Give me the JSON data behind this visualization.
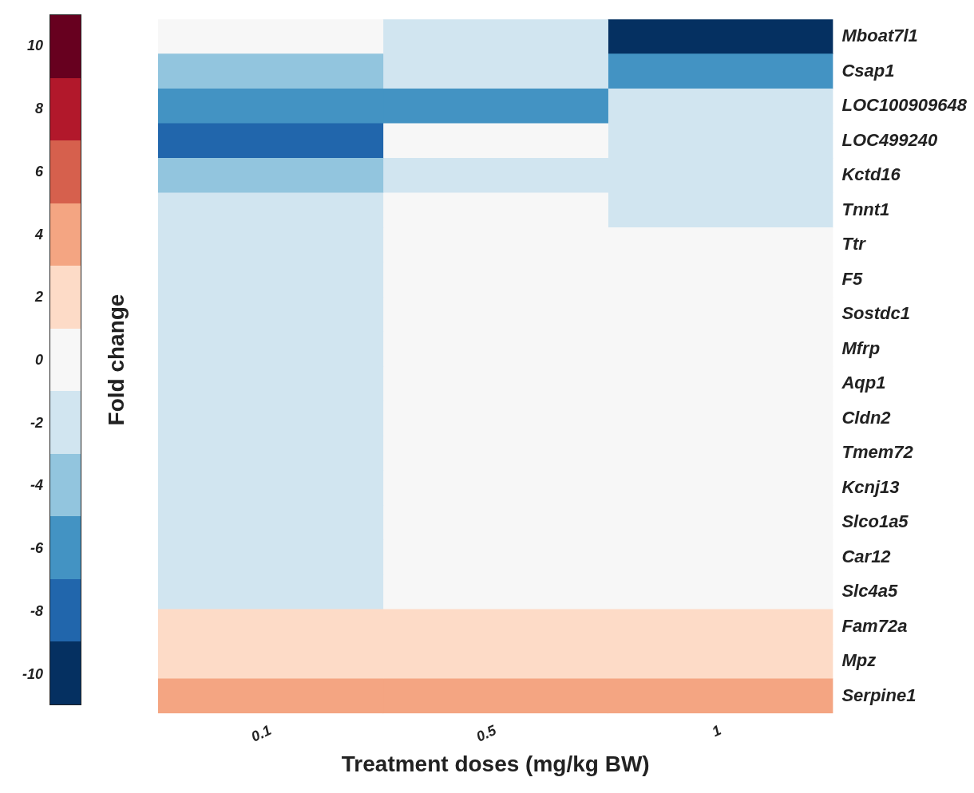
{
  "chart_data": {
    "type": "heatmap",
    "xlabel": "Treatment doses (mg/kg BW)",
    "clabel": "Fold change",
    "categories": [
      "0.1",
      "0.5",
      "1"
    ],
    "y_categories": [
      "Mboat7l1",
      "Csap1",
      "LOC100909648",
      "LOC499240",
      "Kctd16",
      "Tnnt1",
      "Ttr",
      "F5",
      "Sostdc1",
      "Mfrp",
      "Aqp1",
      "Cldn2",
      "Tmem72",
      "Kcnj13",
      "Slco1a5",
      "Car12",
      "Slc4a5",
      "Fam72a",
      "Mpz",
      "Serpine1"
    ],
    "cells": [
      [
        0,
        -2,
        -10
      ],
      [
        -4,
        -2,
        -6
      ],
      [
        -6,
        -6,
        -2
      ],
      [
        -8,
        0,
        -2
      ],
      [
        -4,
        -2,
        -2
      ],
      [
        -2,
        0,
        -2
      ],
      [
        -2,
        0,
        0
      ],
      [
        -2,
        0,
        0
      ],
      [
        -2,
        0,
        0
      ],
      [
        -2,
        0,
        0
      ],
      [
        -2,
        0,
        0
      ],
      [
        -2,
        0,
        0
      ],
      [
        -2,
        0,
        0
      ],
      [
        -2,
        0,
        0
      ],
      [
        -2,
        0,
        0
      ],
      [
        -2,
        0,
        0
      ],
      [
        -2,
        0,
        0
      ],
      [
        2,
        2,
        2
      ],
      [
        2,
        2,
        2
      ],
      [
        4,
        4,
        4
      ]
    ],
    "clim": [
      -11,
      11
    ],
    "cticks": [
      -10,
      -8,
      -6,
      -4,
      -2,
      0,
      2,
      4,
      6,
      8,
      10
    ],
    "colors": [
      "#053061",
      "#2166ac",
      "#4393c3",
      "#92c5de",
      "#d1e5f0",
      "#f7f7f7",
      "#fddbc7",
      "#f4a582",
      "#d6604d",
      "#b2182b",
      "#67001f"
    ]
  }
}
